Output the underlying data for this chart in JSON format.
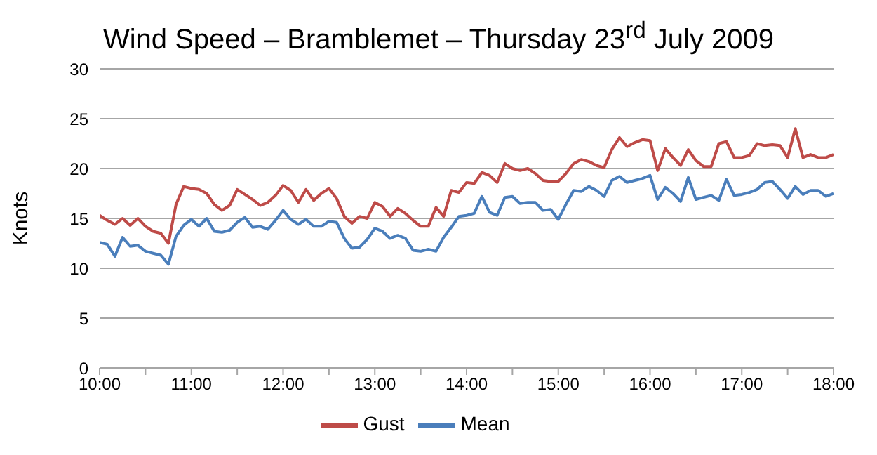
{
  "chart_data": {
    "type": "line",
    "title": "Wind Speed – Bramblemet – Thursday 23$^{rd}$ July 2009",
    "ylabel": "Knots",
    "x": [
      10,
      10.083,
      10.167,
      10.25,
      10.333,
      10.417,
      10.5,
      10.583,
      10.667,
      10.75,
      10.833,
      10.917,
      11,
      11.083,
      11.167,
      11.25,
      11.333,
      11.417,
      11.5,
      11.583,
      11.667,
      11.75,
      11.833,
      11.917,
      12,
      12.083,
      12.167,
      12.25,
      12.333,
      12.417,
      12.5,
      12.583,
      12.667,
      12.75,
      12.833,
      12.917,
      13,
      13.083,
      13.167,
      13.25,
      13.333,
      13.417,
      13.5,
      13.583,
      13.667,
      13.75,
      13.833,
      13.917,
      14,
      14.083,
      14.167,
      14.25,
      14.333,
      14.417,
      14.5,
      14.583,
      14.667,
      14.75,
      14.833,
      14.917,
      15,
      15.083,
      15.167,
      15.25,
      15.333,
      15.417,
      15.5,
      15.583,
      15.667,
      15.75,
      15.833,
      15.917,
      16,
      16.083,
      16.167,
      16.25,
      16.333,
      16.417,
      16.5,
      16.583,
      16.667,
      16.75,
      16.833,
      16.917,
      17,
      17.083,
      17.167,
      17.25,
      17.333,
      17.417,
      17.5,
      17.583,
      17.667,
      17.75,
      17.833,
      17.917,
      18
    ],
    "series": [
      {
        "name": "Mean",
        "color": "#4a7ebb",
        "values": [
          12.6,
          12.4,
          11.2,
          13.1,
          12.2,
          12.3,
          11.7,
          11.5,
          11.3,
          10.4,
          13.2,
          14.3,
          14.9,
          14.2,
          15.0,
          13.7,
          13.6,
          13.8,
          14.6,
          15.1,
          14.1,
          14.2,
          13.9,
          14.8,
          15.8,
          14.9,
          14.4,
          14.9,
          14.2,
          14.2,
          14.7,
          14.6,
          13.0,
          12.0,
          12.1,
          12.9,
          14.0,
          13.7,
          13.0,
          13.3,
          13.0,
          11.8,
          11.7,
          11.9,
          11.7,
          13.1,
          14.1,
          15.2,
          15.3,
          15.5,
          17.2,
          15.6,
          15.3,
          17.1,
          17.2,
          16.5,
          16.6,
          16.6,
          15.8,
          15.9,
          14.9,
          16.4,
          17.8,
          17.7,
          18.2,
          17.8,
          17.2,
          18.8,
          19.2,
          18.6,
          18.8,
          19.0,
          19.3,
          16.9,
          18.1,
          17.5,
          16.7,
          19.1,
          16.9,
          17.1,
          17.3,
          16.8,
          18.9,
          17.3,
          17.4,
          17.6,
          17.9,
          18.6,
          18.7,
          17.9,
          17.0,
          18.2,
          17.4,
          17.8,
          17.8,
          17.2,
          17.5
        ]
      },
      {
        "name": "Gust",
        "color": "#be4b48",
        "values": [
          15.3,
          14.8,
          14.4,
          15.0,
          14.3,
          15.0,
          14.2,
          13.7,
          13.5,
          12.5,
          16.4,
          18.2,
          18.0,
          17.9,
          17.5,
          16.4,
          15.8,
          16.3,
          17.9,
          17.4,
          16.9,
          16.3,
          16.6,
          17.3,
          18.3,
          17.8,
          16.6,
          17.9,
          16.8,
          17.5,
          18.0,
          17.0,
          15.2,
          14.5,
          15.2,
          15.0,
          16.6,
          16.2,
          15.2,
          16.0,
          15.5,
          14.8,
          14.2,
          14.2,
          16.1,
          15.2,
          17.8,
          17.6,
          18.6,
          18.5,
          19.6,
          19.3,
          18.6,
          20.5,
          20.0,
          19.8,
          20.0,
          19.5,
          18.8,
          18.7,
          18.7,
          19.5,
          20.5,
          20.9,
          20.7,
          20.3,
          20.1,
          21.9,
          23.1,
          22.2,
          22.6,
          22.9,
          22.8,
          19.8,
          22.0,
          21.1,
          20.3,
          21.9,
          20.8,
          20.2,
          20.2,
          22.5,
          22.7,
          21.1,
          21.1,
          21.3,
          22.5,
          22.3,
          22.4,
          22.3,
          21.1,
          24.0,
          21.1,
          21.4,
          21.1,
          21.1,
          21.4
        ]
      }
    ],
    "xlim": [
      10,
      18
    ],
    "xticks": [
      {
        "value": 10,
        "label": "10:00"
      },
      {
        "value": 10.5,
        "label": null
      },
      {
        "value": 11,
        "label": "11:00"
      },
      {
        "value": 11.5,
        "label": null
      },
      {
        "value": 12,
        "label": "12:00"
      },
      {
        "value": 12.5,
        "label": null
      },
      {
        "value": 13,
        "label": "13:00"
      },
      {
        "value": 13.5,
        "label": null
      },
      {
        "value": 14,
        "label": "14:00"
      },
      {
        "value": 14.5,
        "label": null
      },
      {
        "value": 15,
        "label": "15:00"
      },
      {
        "value": 15.5,
        "label": null
      },
      {
        "value": 16,
        "label": "16:00"
      },
      {
        "value": 16.5,
        "label": null
      },
      {
        "value": 17,
        "label": "17:00"
      },
      {
        "value": 17.5,
        "label": null
      },
      {
        "value": 18,
        "label": "18:00"
      }
    ],
    "ylim": [
      0,
      30
    ],
    "yticks": [
      0,
      5,
      10,
      15,
      20,
      25,
      30
    ],
    "grid": "y",
    "legend": "bottom",
    "marker": "none",
    "line_style": "solid"
  }
}
